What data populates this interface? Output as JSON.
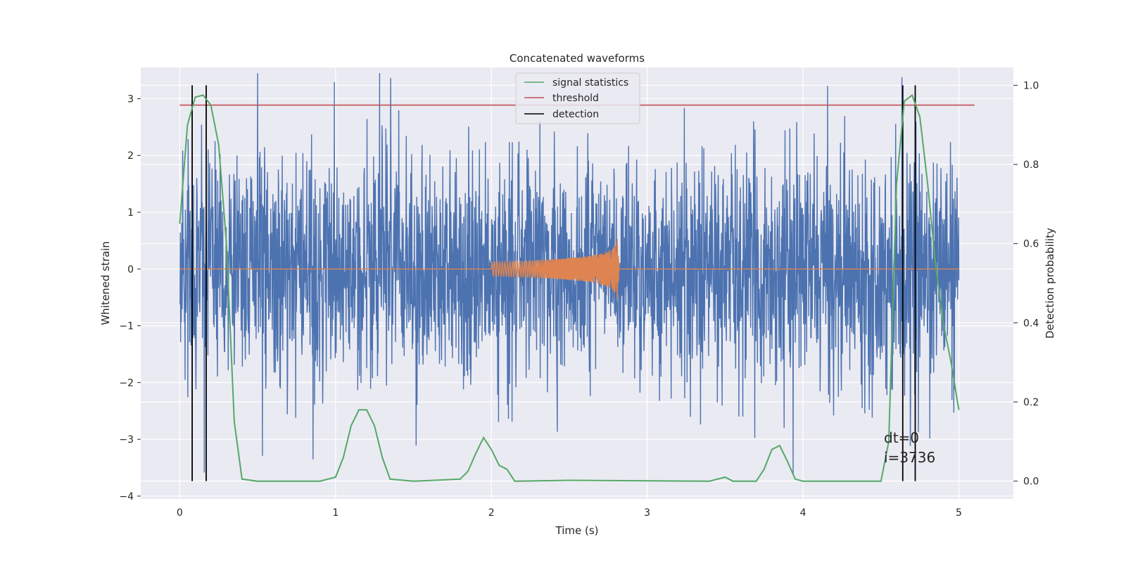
{
  "chart_data": {
    "type": "line",
    "title": "Concatenated waveforms",
    "xlabel": "Time (s)",
    "ylabel": "Whitened strain",
    "ylabel_right": "Detection probability",
    "xlim": [
      -0.25,
      5.35
    ],
    "ylim": [
      -4.05,
      3.55
    ],
    "ylim_right": [
      -0.045,
      1.045
    ],
    "xticks": [
      0,
      1,
      2,
      3,
      4,
      5
    ],
    "yticks": [
      -4,
      -3,
      -2,
      -1,
      0,
      1,
      2,
      3
    ],
    "yticks_right": [
      0.0,
      0.2,
      0.4,
      0.6,
      0.8,
      1.0
    ],
    "grid": true,
    "legend_position": "top-center",
    "legend": [
      "signal statistics",
      "threshold",
      "detection"
    ],
    "colors": {
      "noise": "#4c72b0",
      "waveform": "#dd8452",
      "signal_statistics": "#55a868",
      "threshold": "#c44e52",
      "detection": "#000000",
      "axes_bg": "#eaeaf2"
    },
    "series": [
      {
        "name": "",
        "axis": "left",
        "description": "whitened noise",
        "x_range": [
          0,
          5
        ],
        "amplitude_typical": 1.6,
        "amplitude_max": 3.45
      },
      {
        "name": "",
        "axis": "left",
        "description": "injected waveform",
        "x_range": [
          2.0,
          2.82
        ],
        "envelope": [
          [
            2.0,
            0.12
          ],
          [
            2.2,
            0.14
          ],
          [
            2.4,
            0.17
          ],
          [
            2.6,
            0.22
          ],
          [
            2.7,
            0.27
          ],
          [
            2.78,
            0.35
          ],
          [
            2.81,
            0.55
          ],
          [
            2.82,
            0.0
          ]
        ]
      },
      {
        "name": "signal statistics",
        "axis": "right",
        "x": [
          0.0,
          0.05,
          0.1,
          0.15,
          0.2,
          0.25,
          0.3,
          0.35,
          0.4,
          0.5,
          0.9,
          1.0,
          1.05,
          1.1,
          1.15,
          1.2,
          1.25,
          1.3,
          1.35,
          1.5,
          1.8,
          1.85,
          1.9,
          1.95,
          2.0,
          2.05,
          2.1,
          2.15,
          2.5,
          3.4,
          3.5,
          3.55,
          3.7,
          3.75,
          3.8,
          3.85,
          3.9,
          3.95,
          4.0,
          4.5,
          4.55,
          4.6,
          4.65,
          4.7,
          4.75,
          4.8,
          4.85,
          4.9,
          4.95,
          5.0
        ],
        "y": [
          0.65,
          0.9,
          0.97,
          0.975,
          0.95,
          0.85,
          0.6,
          0.15,
          0.005,
          0.0,
          0.0,
          0.01,
          0.06,
          0.14,
          0.18,
          0.18,
          0.14,
          0.06,
          0.005,
          0.0,
          0.005,
          0.025,
          0.07,
          0.11,
          0.08,
          0.04,
          0.03,
          0.0,
          0.002,
          0.0,
          0.01,
          0.0,
          0.0,
          0.03,
          0.08,
          0.09,
          0.05,
          0.005,
          0.0,
          0.0,
          0.1,
          0.75,
          0.96,
          0.975,
          0.92,
          0.75,
          0.55,
          0.4,
          0.3,
          0.18
        ]
      },
      {
        "name": "threshold",
        "axis": "right",
        "x": [
          0,
          5.1
        ],
        "y": [
          0.95,
          0.95
        ]
      }
    ],
    "detections": [
      0.08,
      0.17,
      4.64,
      4.72
    ],
    "annotations": [
      "dt=0",
      "i=3736"
    ]
  }
}
